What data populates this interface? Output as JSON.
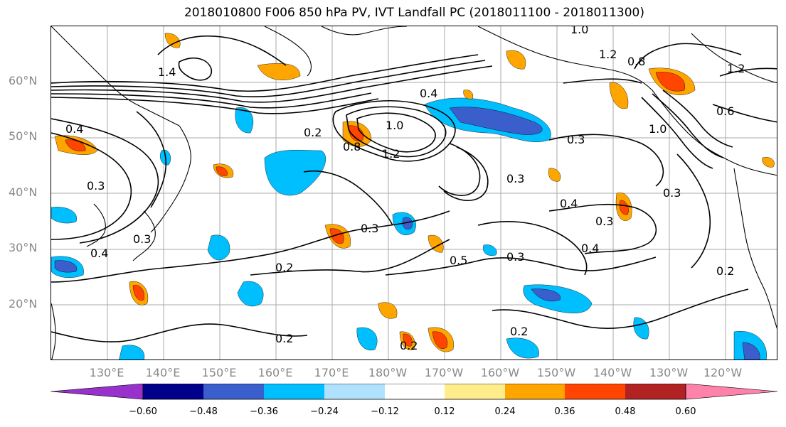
{
  "title": "2018010800 F006 850 hPa PV, IVT Landfall PC (2018011100 - 2018011300)",
  "lat_labels": [
    "60°N",
    "50°N",
    "40°N",
    "30°N",
    "20°N"
  ],
  "lon_labels": [
    "130°E",
    "140°E",
    "150°E",
    "160°E",
    "170°E",
    "180°W",
    "170°W",
    "160°W",
    "150°W",
    "140°W",
    "130°W",
    "120°W"
  ],
  "colorbar": {
    "colors": [
      "#9932cc",
      "#00008b",
      "#3a5fcd",
      "#00bfff",
      "#b0e2ff",
      "#ffffff",
      "#ffec8b",
      "#ffa500",
      "#ff4500",
      "#b22222",
      "#ff82ab"
    ],
    "tick_labels": [
      "−0.60",
      "−0.48",
      "−0.36",
      "−0.24",
      "−0.12",
      "0.12",
      "0.24",
      "0.36",
      "0.48",
      "0.60"
    ]
  },
  "contour_labels": [
    "0.4",
    "0.2",
    "1.0",
    "1.2",
    "0.8",
    "0.3",
    "0.3",
    "0.4",
    "0.3",
    "0.4",
    "0.3",
    "0.5",
    "0.3",
    "0.2",
    "0.2",
    "0.2",
    "0.4",
    "0.3",
    "0.2",
    "1.4",
    "1.2",
    "1.0",
    "1.2",
    "0.8",
    "1.0",
    "0.6",
    "0.3",
    "0.2",
    "0.4",
    "0.3"
  ]
}
